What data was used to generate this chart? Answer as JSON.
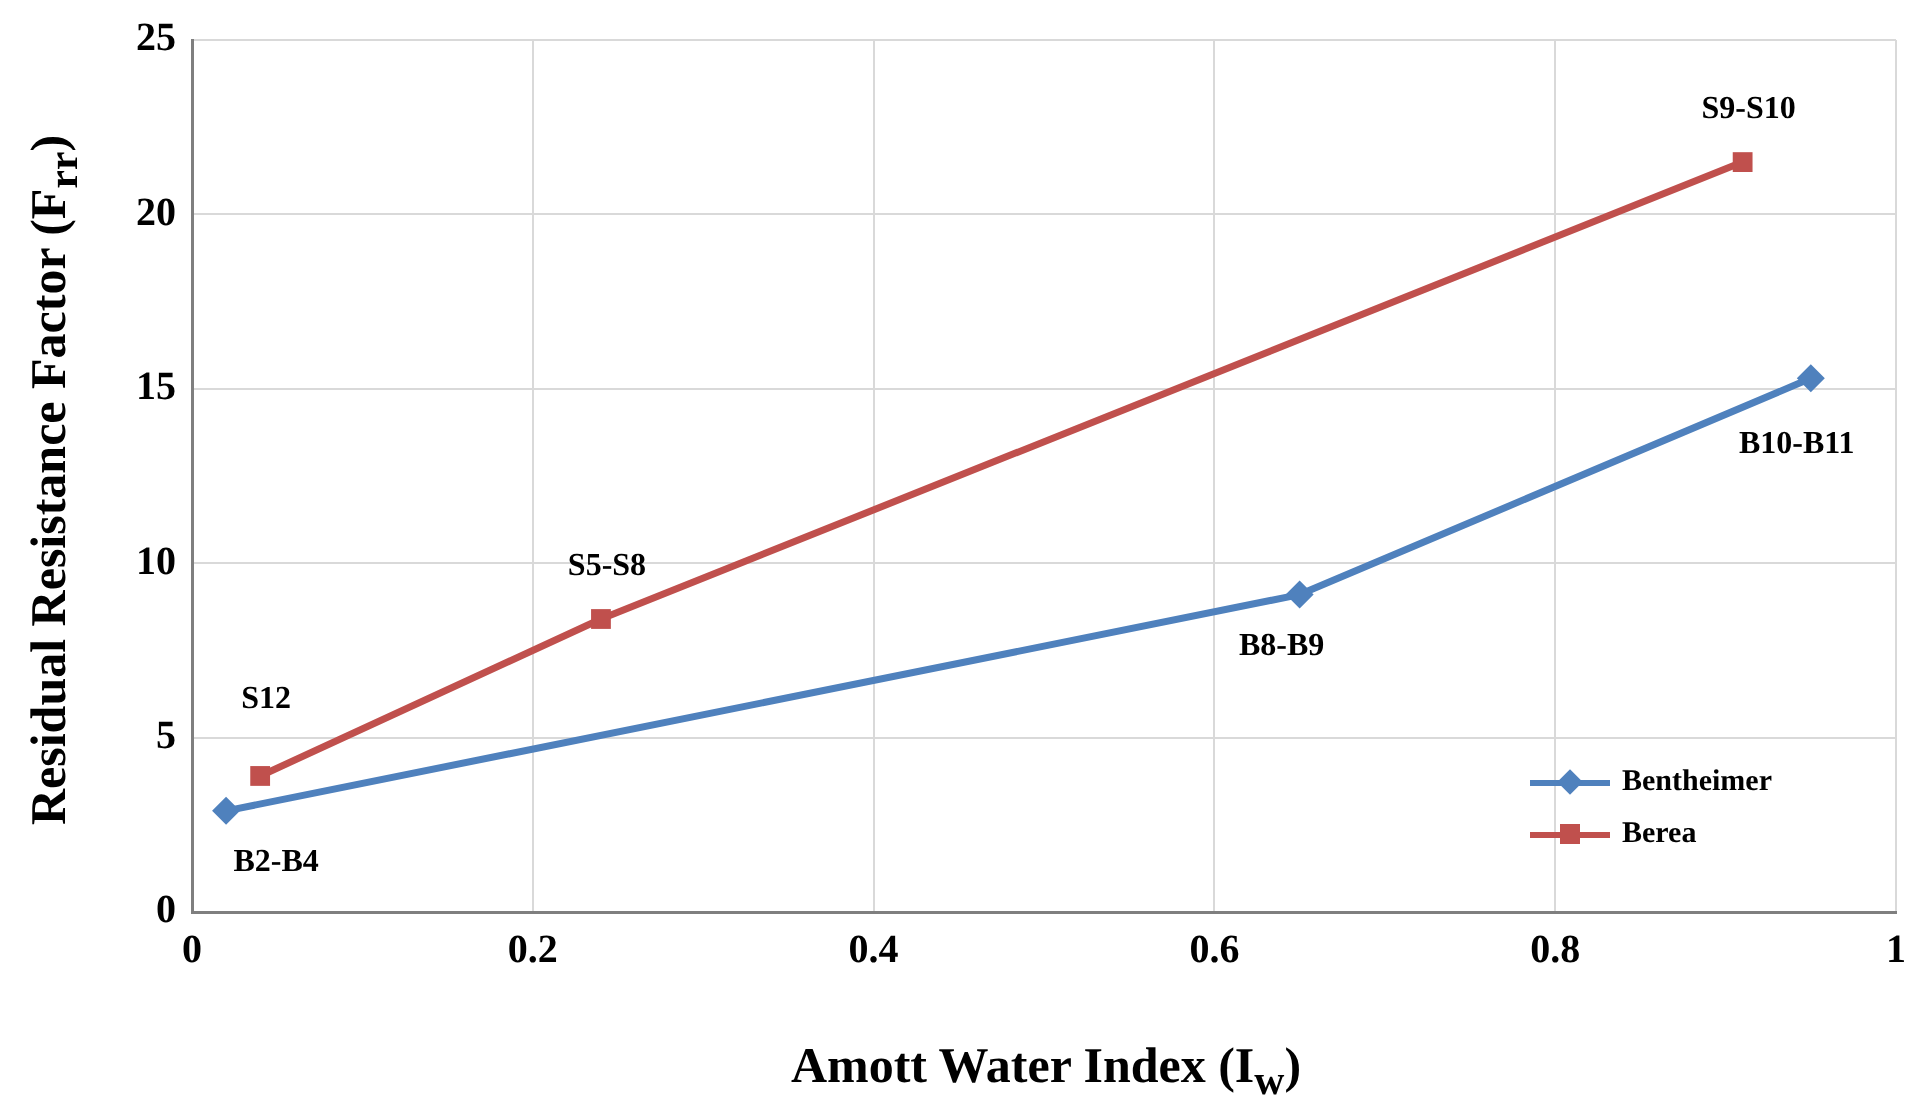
{
  "chart_data": {
    "type": "line",
    "xlabel": "Amott Water Index (I$_{w}$)",
    "ylabel": "Residual Resistance Factor (F$_{rr}$)",
    "xlim": [
      0,
      1
    ],
    "xticks": [
      0,
      0.2,
      0.4,
      0.6,
      0.8,
      1
    ],
    "ylim": [
      0,
      25
    ],
    "yticks": [
      0,
      5,
      10,
      15,
      20,
      25
    ],
    "grid": true,
    "legend": "bottom right",
    "line_style": "solid",
    "series": [
      {
        "name": "Bentheimer",
        "color": "#4f81bd",
        "marker": "diamond",
        "x": [
          0.02,
          0.65,
          0.95
        ],
        "values": [
          2.9,
          9.1,
          15.3
        ]
      },
      {
        "name": "Berea",
        "color": "#c0504d",
        "marker": "square",
        "x": [
          0.04,
          0.24,
          0.91
        ],
        "values": [
          3.9,
          8.4,
          21.5
        ]
      }
    ],
    "annotations": [
      {
        "text": "B2-B4",
        "x": 0.02,
        "y": 2.9
      },
      {
        "text": "B8-B9",
        "x": 0.65,
        "y": 9.1
      },
      {
        "text": "B10-B11",
        "x": 0.95,
        "y": 15.3
      },
      {
        "text": "S12",
        "x": 0.04,
        "y": 3.9
      },
      {
        "text": "S5-S8",
        "x": 0.24,
        "y": 8.4
      },
      {
        "text": "S9-S10",
        "x": 0.91,
        "y": 21.5
      }
    ]
  }
}
